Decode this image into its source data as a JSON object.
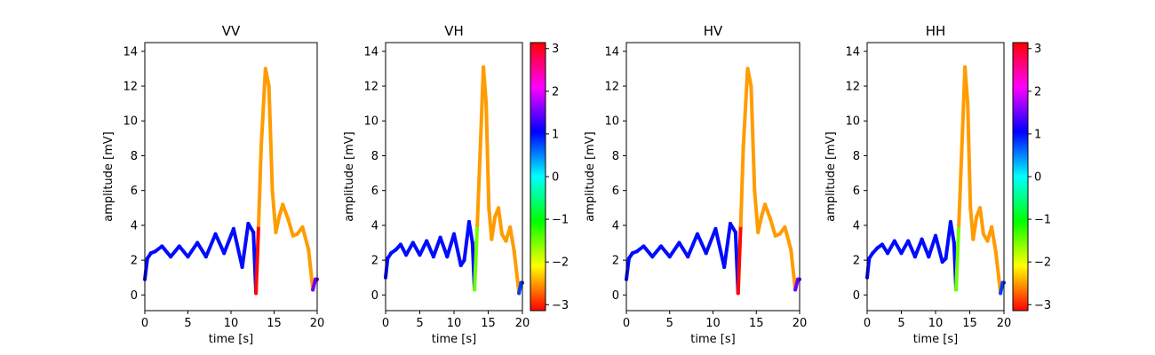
{
  "chart_data": [
    {
      "type": "line",
      "title": "VV",
      "xlabel": "time [s]",
      "ylabel": "amplitude [mV]",
      "xlim": [
        0,
        20
      ],
      "ylim": [
        -0.9,
        14.5
      ],
      "xticks": [
        0,
        5,
        10,
        15,
        20
      ],
      "yticks": [
        0,
        2,
        4,
        6,
        8,
        10,
        12,
        14
      ],
      "colorbar": false,
      "color_encoding": "phase",
      "series": [
        {
          "x": [
            0,
            0.3,
            0.7,
            1.2,
            2.0,
            3.0,
            4.0,
            5.0,
            6.1,
            7.1,
            8.2,
            9.2,
            10.3,
            11.3,
            12.0,
            12.6,
            12.9,
            13.2,
            13.5,
            14.0,
            14.4,
            14.8,
            15.2,
            15.6,
            16.0,
            16.6,
            17.2,
            17.7,
            18.3,
            19.0,
            19.5,
            19.8,
            20.0
          ],
          "y": [
            0.9,
            2.1,
            2.4,
            2.5,
            2.8,
            2.2,
            2.8,
            2.2,
            3.0,
            2.2,
            3.5,
            2.4,
            3.8,
            1.6,
            4.1,
            3.6,
            0.1,
            4.0,
            8.5,
            13.0,
            12.0,
            6.0,
            3.6,
            4.5,
            5.2,
            4.4,
            3.4,
            3.5,
            3.9,
            2.6,
            0.3,
            0.9,
            0.9
          ],
          "phase": [
            1.0,
            1.0,
            1.0,
            1.0,
            1.0,
            1.0,
            1.0,
            1.0,
            1.0,
            1.0,
            1.0,
            1.0,
            1.0,
            1.0,
            1.0,
            1.0,
            -3.1,
            -2.5,
            -2.5,
            -2.5,
            -2.5,
            -2.5,
            -2.5,
            -2.5,
            -2.5,
            -2.5,
            -2.5,
            -2.5,
            -2.5,
            -2.5,
            1.5,
            1.5,
            1.5
          ]
        }
      ]
    },
    {
      "type": "line",
      "title": "VH",
      "xlabel": "time [s]",
      "ylabel": "amplitude [mV]",
      "xlim": [
        0,
        20
      ],
      "ylim": [
        -0.9,
        14.5
      ],
      "xticks": [
        0,
        5,
        10,
        15,
        20
      ],
      "yticks": [
        0,
        2,
        4,
        6,
        8,
        10,
        12,
        14
      ],
      "colorbar": true,
      "colorbar_range": [
        -3.14,
        3.14
      ],
      "colorbar_ticks": [
        -3,
        -2,
        -1,
        0,
        1,
        2,
        3
      ],
      "color_encoding": "phase",
      "series": [
        {
          "x": [
            0,
            0.3,
            0.8,
            1.5,
            2.2,
            3.0,
            4.0,
            5.0,
            6.0,
            7.0,
            8.0,
            9.0,
            10.0,
            11.0,
            11.5,
            12.2,
            12.7,
            13.0,
            13.4,
            13.9,
            14.3,
            14.7,
            15.1,
            15.5,
            16.0,
            16.5,
            17.0,
            17.6,
            18.2,
            18.8,
            19.5,
            19.8,
            20.0
          ],
          "y": [
            1.0,
            2.1,
            2.4,
            2.6,
            2.9,
            2.3,
            3.0,
            2.3,
            3.1,
            2.2,
            3.3,
            2.2,
            3.5,
            1.7,
            2.0,
            4.2,
            3.0,
            0.3,
            4.0,
            9.0,
            13.1,
            11.0,
            5.0,
            3.2,
            4.5,
            5.0,
            3.5,
            3.1,
            3.9,
            2.5,
            0.1,
            0.7,
            0.7
          ],
          "phase": [
            1.0,
            1.0,
            1.0,
            1.0,
            1.0,
            1.0,
            1.0,
            1.0,
            1.0,
            1.0,
            1.0,
            1.0,
            1.0,
            1.0,
            1.0,
            1.0,
            1.0,
            -1.5,
            -2.5,
            -2.5,
            -2.5,
            -2.5,
            -2.5,
            -2.5,
            -2.5,
            -2.5,
            -2.5,
            -2.5,
            -2.5,
            -2.5,
            0.8,
            0.8,
            0.8
          ]
        }
      ]
    },
    {
      "type": "line",
      "title": "HV",
      "xlabel": "time [s]",
      "ylabel": "amplitude [mV]",
      "xlim": [
        0,
        20
      ],
      "ylim": [
        -0.9,
        14.5
      ],
      "xticks": [
        0,
        5,
        10,
        15,
        20
      ],
      "yticks": [
        0,
        2,
        4,
        6,
        8,
        10,
        12,
        14
      ],
      "colorbar": false,
      "color_encoding": "phase",
      "series": [
        {
          "x": [
            0,
            0.3,
            0.7,
            1.2,
            2.0,
            3.0,
            4.0,
            5.0,
            6.1,
            7.1,
            8.2,
            9.2,
            10.3,
            11.3,
            12.0,
            12.6,
            12.9,
            13.2,
            13.5,
            14.0,
            14.4,
            14.8,
            15.2,
            15.6,
            16.0,
            16.6,
            17.2,
            17.7,
            18.3,
            19.0,
            19.5,
            19.8,
            20.0
          ],
          "y": [
            0.9,
            2.1,
            2.4,
            2.5,
            2.8,
            2.2,
            2.8,
            2.2,
            3.0,
            2.2,
            3.5,
            2.4,
            3.8,
            1.6,
            4.1,
            3.6,
            0.1,
            4.0,
            8.5,
            13.0,
            12.0,
            6.0,
            3.6,
            4.5,
            5.2,
            4.4,
            3.4,
            3.5,
            3.9,
            2.6,
            0.3,
            0.9,
            0.9
          ],
          "phase": [
            1.0,
            1.0,
            1.0,
            1.0,
            1.0,
            1.0,
            1.0,
            1.0,
            1.0,
            1.0,
            1.0,
            1.0,
            1.0,
            1.0,
            1.0,
            1.0,
            -3.1,
            -2.5,
            -2.5,
            -2.5,
            -2.5,
            -2.5,
            -2.5,
            -2.5,
            -2.5,
            -2.5,
            -2.5,
            -2.5,
            -2.5,
            -2.5,
            1.5,
            1.5,
            1.5
          ]
        }
      ]
    },
    {
      "type": "line",
      "title": "HH",
      "xlabel": "time [s]",
      "ylabel": "amplitude [mV]",
      "xlim": [
        0,
        20
      ],
      "ylim": [
        -0.9,
        14.5
      ],
      "xticks": [
        0,
        5,
        10,
        15,
        20
      ],
      "yticks": [
        0,
        2,
        4,
        6,
        8,
        10,
        12,
        14
      ],
      "colorbar": true,
      "colorbar_range": [
        -3.14,
        3.14
      ],
      "colorbar_ticks": [
        -3,
        -2,
        -1,
        0,
        1,
        2,
        3
      ],
      "color_encoding": "phase",
      "series": [
        {
          "x": [
            0,
            0.3,
            0.8,
            1.5,
            2.2,
            3.0,
            4.0,
            5.0,
            6.0,
            7.0,
            8.0,
            9.0,
            10.0,
            11.0,
            11.5,
            12.2,
            12.7,
            13.0,
            13.4,
            13.9,
            14.3,
            14.7,
            15.1,
            15.5,
            16.0,
            16.5,
            17.0,
            17.6,
            18.2,
            18.8,
            19.5,
            19.8,
            20.0
          ],
          "y": [
            1.0,
            2.1,
            2.4,
            2.7,
            2.9,
            2.4,
            3.1,
            2.4,
            3.1,
            2.2,
            3.2,
            2.2,
            3.4,
            1.9,
            2.1,
            4.2,
            3.0,
            0.3,
            4.0,
            9.0,
            13.1,
            11.0,
            5.0,
            3.2,
            4.5,
            5.0,
            3.5,
            3.1,
            3.9,
            2.5,
            0.1,
            0.7,
            0.7
          ],
          "phase": [
            1.0,
            1.0,
            1.0,
            1.0,
            1.0,
            1.0,
            1.0,
            1.0,
            1.0,
            1.0,
            1.0,
            1.0,
            1.0,
            1.0,
            1.0,
            1.0,
            1.0,
            -1.5,
            -2.5,
            -2.5,
            -2.5,
            -2.5,
            -2.5,
            -2.5,
            -2.5,
            -2.5,
            -2.5,
            -2.5,
            -2.5,
            -2.5,
            0.8,
            0.8,
            0.8
          ]
        }
      ]
    }
  ]
}
